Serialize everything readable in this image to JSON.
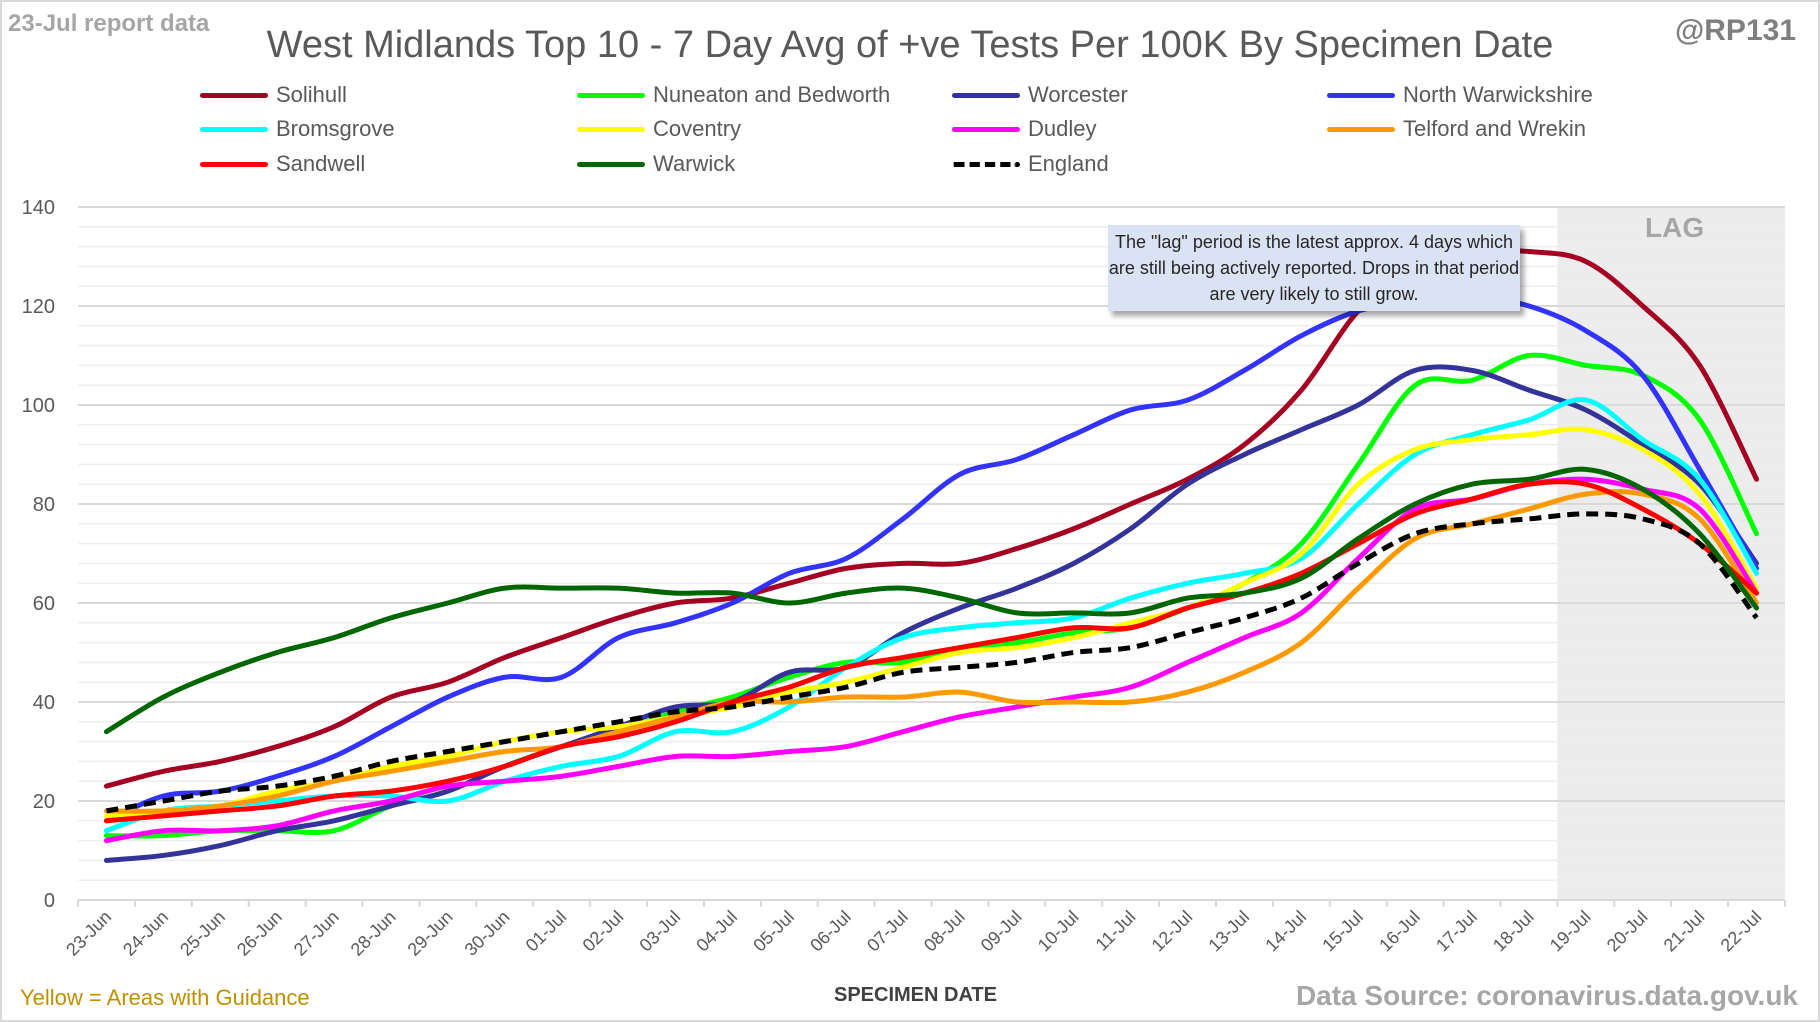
{
  "header": {
    "report_label": "23-Jul report data",
    "handle": "@RP131"
  },
  "footer": {
    "guidance_note": "Yellow = Areas with Guidance",
    "source": "Data Source: coronavirus.data.gov.uk"
  },
  "chart_data": {
    "type": "line",
    "title": "West Midlands Top 10 - 7 Day Avg of +ve Tests Per 100K By Specimen Date",
    "xlabel": "SPECIMEN DATE",
    "ylabel": "",
    "ylim": [
      0,
      140
    ],
    "yticks": [
      0,
      20,
      40,
      60,
      80,
      100,
      120,
      140
    ],
    "grid": true,
    "legend_position": "top",
    "categories": [
      "23-Jun",
      "24-Jun",
      "25-Jun",
      "26-Jun",
      "27-Jun",
      "28-Jun",
      "29-Jun",
      "30-Jun",
      "01-Jul",
      "02-Jul",
      "03-Jul",
      "04-Jul",
      "05-Jul",
      "06-Jul",
      "07-Jul",
      "08-Jul",
      "09-Jul",
      "10-Jul",
      "11-Jul",
      "12-Jul",
      "13-Jul",
      "14-Jul",
      "15-Jul",
      "16-Jul",
      "17-Jul",
      "18-Jul",
      "19-Jul",
      "20-Jul",
      "21-Jul",
      "22-Jul"
    ],
    "lag_region": {
      "label": "LAG",
      "from": "19-Jul",
      "to": "22-Jul"
    },
    "annotation": "The \"lag\" period is the latest approx. 4 days which are still being actively reported.  Drops in that period are very likely to still grow.",
    "series": [
      {
        "name": "Solihull",
        "color": "#a50021",
        "dashed": false,
        "values": [
          23,
          26,
          28,
          31,
          35,
          41,
          44,
          49,
          53,
          57,
          60,
          61,
          64,
          67,
          68,
          68,
          71,
          75,
          80,
          85,
          92,
          103,
          119,
          128,
          131,
          131,
          129,
          120,
          108,
          85
        ]
      },
      {
        "name": "Nuneaton and Bedworth",
        "color": "#00ff00",
        "dashed": false,
        "values": [
          13,
          13,
          14,
          14,
          14,
          19,
          22,
          27,
          31,
          34,
          38,
          41,
          45,
          48,
          48,
          51,
          52,
          54,
          55,
          59,
          64,
          72,
          88,
          104,
          105,
          110,
          108,
          106,
          97,
          74
        ]
      },
      {
        "name": "Worcester",
        "color": "#333399",
        "dashed": false,
        "values": [
          8,
          9,
          11,
          14,
          16,
          19,
          22,
          27,
          31,
          35,
          39,
          40,
          46,
          47,
          54,
          59,
          63,
          68,
          75,
          84,
          90,
          95,
          100,
          107,
          107,
          103,
          99,
          92,
          84,
          68
        ]
      },
      {
        "name": "North Warwickshire",
        "color": "#3333ff",
        "dashed": false,
        "values": [
          16,
          21,
          22,
          25,
          29,
          35,
          41,
          45,
          45,
          53,
          56,
          60,
          66,
          69,
          77,
          86,
          89,
          94,
          99,
          101,
          107,
          114,
          119,
          121,
          122,
          120,
          115,
          106,
          87,
          67
        ]
      },
      {
        "name": "Bromsgrove",
        "color": "#00ffff",
        "dashed": false,
        "values": [
          14,
          18,
          19,
          20,
          21,
          21,
          20,
          24,
          27,
          29,
          34,
          34,
          39,
          47,
          53,
          55,
          56,
          57,
          61,
          64,
          66,
          69,
          80,
          90,
          94,
          97,
          101,
          93,
          85,
          66
        ]
      },
      {
        "name": "Coventry",
        "color": "#ffff00",
        "dashed": false,
        "values": [
          17,
          18,
          19,
          22,
          24,
          27,
          29,
          32,
          34,
          35,
          37,
          39,
          42,
          44,
          47,
          50,
          51,
          53,
          56,
          59,
          64,
          70,
          84,
          91,
          93,
          94,
          95,
          91,
          82,
          63
        ]
      },
      {
        "name": "Dudley",
        "color": "#ff00ff",
        "dashed": false,
        "values": [
          12,
          14,
          14,
          15,
          18,
          20,
          23,
          24,
          25,
          27,
          29,
          29,
          30,
          31,
          34,
          37,
          39,
          41,
          43,
          48,
          53,
          58,
          69,
          79,
          81,
          84,
          85,
          83,
          79,
          62
        ]
      },
      {
        "name": "Telford and Wrekin",
        "color": "#ff9900",
        "dashed": false,
        "values": [
          18,
          18,
          19,
          21,
          24,
          26,
          28,
          30,
          31,
          34,
          37,
          40,
          40,
          41,
          41,
          42,
          40,
          40,
          40,
          42,
          46,
          52,
          63,
          73,
          76,
          79,
          82,
          82,
          77,
          60
        ]
      },
      {
        "name": "Sandwell",
        "color": "#ff0000",
        "dashed": false,
        "values": [
          16,
          17,
          18,
          19,
          21,
          22,
          24,
          27,
          31,
          33,
          36,
          40,
          43,
          47,
          49,
          51,
          53,
          55,
          55,
          59,
          62,
          66,
          72,
          78,
          81,
          84,
          84,
          79,
          72,
          62
        ]
      },
      {
        "name": "Warwick",
        "color": "#006600",
        "dashed": false,
        "values": [
          34,
          41,
          46,
          50,
          53,
          57,
          60,
          63,
          63,
          63,
          62,
          62,
          60,
          62,
          63,
          61,
          58,
          58,
          58,
          61,
          62,
          65,
          73,
          80,
          84,
          85,
          87,
          83,
          74,
          59
        ]
      },
      {
        "name": "England",
        "color": "#000000",
        "dashed": true,
        "values": [
          18,
          20,
          22,
          23,
          25,
          28,
          30,
          32,
          34,
          36,
          38,
          39,
          41,
          43,
          46,
          47,
          48,
          50,
          51,
          54,
          57,
          61,
          68,
          74,
          76,
          77,
          78,
          77,
          72,
          57
        ]
      }
    ]
  }
}
